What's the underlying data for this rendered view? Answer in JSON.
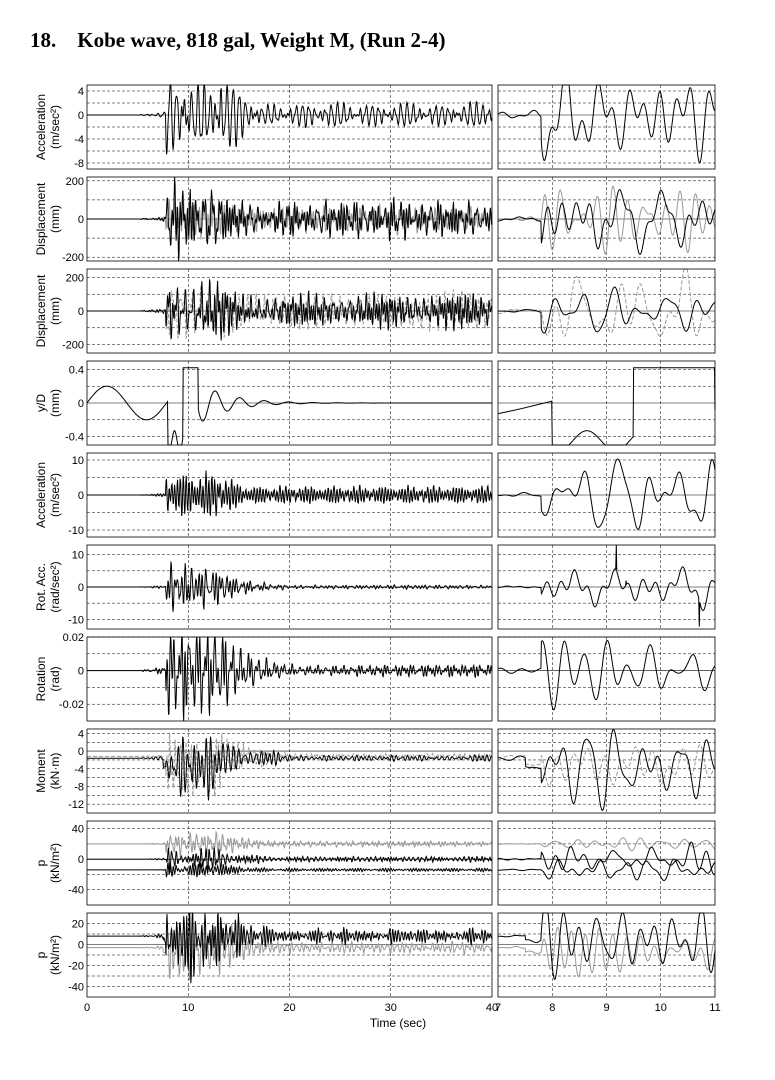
{
  "title": "18.    Kobe wave, 818 gal, Weight M, (Run 2-4)",
  "x_axis_label": "Time (sec)",
  "chart_data": {
    "type": "line",
    "title": "18.    Kobe wave, 818 gal, Weight M, (Run 2-4)",
    "xlabel": "Time (sec)",
    "grid": true,
    "left_column": {
      "xlim": [
        0,
        40
      ],
      "xticks": [
        "0",
        "10",
        "20",
        "30",
        "40"
      ]
    },
    "right_column": {
      "xlim": [
        7,
        11
      ],
      "xticks": [
        "7",
        "8",
        "9",
        "10",
        "11"
      ]
    },
    "panels": [
      {
        "ylabel": [
          "Acceleration",
          "(m/sec²)"
        ],
        "ylim": [
          -9,
          5
        ],
        "yticks": [
          4,
          2,
          0,
          -2,
          -4,
          -6,
          -8
        ],
        "yticklabels": [
          "4",
          "0",
          "-4",
          "-8"
        ],
        "zero_lines": [
          0
        ],
        "series": [
          {
            "color": "#000000",
            "amp": 7.5,
            "tail": 0.3,
            "base": 0,
            "dash": false,
            "seed": 1
          }
        ]
      },
      {
        "ylabel": [
          "Displacement",
          "(mm)"
        ],
        "ylim": [
          -220,
          220
        ],
        "yticks": [
          200,
          100,
          0,
          -100,
          -200
        ],
        "yticklabels": [
          "200",
          "0",
          "-200"
        ],
        "zero_lines": [
          0
        ],
        "series": [
          {
            "color": "#999999",
            "amp": 175,
            "tail": 0.5,
            "base": 0,
            "dash": false,
            "seed": 2
          },
          {
            "color": "#000000",
            "amp": 165,
            "tail": 0.5,
            "base": 0,
            "dash": false,
            "seed": 2
          }
        ]
      },
      {
        "ylabel": [
          "Displacement",
          "(mm)"
        ],
        "ylim": [
          -250,
          250
        ],
        "yticks": [
          200,
          100,
          0,
          -100,
          -200
        ],
        "yticklabels": [
          "200",
          "0",
          "-200"
        ],
        "zero_lines": [
          0
        ],
        "series": [
          {
            "color": "#999999",
            "amp": 215,
            "tail": 0.5,
            "base": 0,
            "dash": true,
            "seed": 3
          },
          {
            "color": "#000000",
            "amp": 200,
            "tail": 0.5,
            "base": 0,
            "dash": false,
            "seed": 3
          }
        ]
      },
      {
        "ylabel": [
          "y/D",
          "(mm)"
        ],
        "ylim": [
          -0.5,
          0.5
        ],
        "yticks": [
          0.4,
          0.2,
          0,
          -0.2,
          -0.4
        ],
        "yticklabels": [
          "0.4",
          "0",
          "-0.4"
        ],
        "zero_lines": [
          0
        ],
        "series": [
          {
            "color": "#000000",
            "amp": 0.43,
            "tail": 0.0,
            "base": 0,
            "dash": false,
            "seed": 4,
            "smooth": true
          }
        ]
      },
      {
        "ylabel": [
          "Acceleration",
          "(m/sec²)"
        ],
        "ylim": [
          -12,
          12
        ],
        "yticks": [
          10,
          5,
          0,
          -5,
          -10
        ],
        "yticklabels": [
          "10",
          "0",
          "-10"
        ],
        "zero_lines": [
          0
        ],
        "series": [
          {
            "color": "#000000",
            "amp": 10.5,
            "tail": 0.4,
            "base": 0,
            "dash": false,
            "seed": 5
          }
        ]
      },
      {
        "ylabel": [
          "Rot. Acc.",
          "(rad/sec²)"
        ],
        "ylim": [
          -13,
          13
        ],
        "yticks": [
          10,
          5,
          0,
          -5,
          -10
        ],
        "yticklabels": [
          "10",
          "0",
          "-10"
        ],
        "zero_lines": [
          0
        ],
        "series": [
          {
            "color": "#000000",
            "amp": 5,
            "tail": 0.1,
            "base": 0,
            "dash": false,
            "seed": 6,
            "spikes": true
          }
        ]
      },
      {
        "ylabel": [
          "Rotation",
          "(rad)"
        ],
        "ylim": [
          -0.03,
          0.02
        ],
        "yticks": [
          0.02,
          0.01,
          0,
          -0.01,
          -0.02
        ],
        "yticklabels": [
          "0.02",
          "0",
          "-0.02"
        ],
        "zero_lines": [
          0
        ],
        "series": [
          {
            "color": "#000000",
            "amp": 0.027,
            "tail": 0.1,
            "base": 0,
            "dash": false,
            "seed": 7
          }
        ]
      },
      {
        "ylabel": [
          "Moment",
          "(kN·m)"
        ],
        "ylim": [
          -14,
          5
        ],
        "yticks": [
          4,
          2,
          0,
          -2,
          -4,
          -6,
          -8,
          -10,
          -12
        ],
        "yticklabels": [
          "4",
          "0",
          "-4",
          "-8",
          "-12"
        ],
        "zero_lines": [
          0
        ],
        "series": [
          {
            "color": "#999999",
            "amp": 6,
            "tail": 0.1,
            "base": -1.2,
            "dash": true,
            "seed": 8,
            "offset": -4
          },
          {
            "color": "#000000",
            "amp": 6,
            "tail": 0.1,
            "base": -1.6,
            "dash": false,
            "seed": 8,
            "offset": -4
          }
        ]
      },
      {
        "ylabel": [
          "p",
          "(kN/m²)"
        ],
        "ylim": [
          -60,
          50
        ],
        "yticks": [
          40,
          20,
          0,
          -20,
          -40
        ],
        "yticklabels": [
          "40",
          "0",
          "-40"
        ],
        "zero_lines": [
          0
        ],
        "series": [
          {
            "color": "#999999",
            "amp": 14,
            "tail": 0.25,
            "base": 20,
            "dash": false,
            "seed": 9
          },
          {
            "color": "#000000",
            "amp": 14,
            "tail": 0.25,
            "base": 0,
            "dash": false,
            "seed": 10
          },
          {
            "color": "#000000",
            "amp": 14,
            "tail": 0.25,
            "base": -14,
            "dash": false,
            "seed": 11
          }
        ]
      },
      {
        "ylabel": [
          "p",
          "(kN/m²)"
        ],
        "ylim": [
          -50,
          30
        ],
        "yticks": [
          20,
          10,
          0,
          -10,
          -20,
          -30,
          -40
        ],
        "yticklabels": [
          "20",
          "0",
          "-20",
          "-40"
        ],
        "zero_lines": [
          0
        ],
        "series": [
          {
            "color": "#999999",
            "amp": 28,
            "tail": 0.2,
            "base": -3,
            "dash": false,
            "seed": 12,
            "offset": -8
          },
          {
            "color": "#000000",
            "amp": 30,
            "tail": 0.2,
            "base": 8,
            "dash": false,
            "seed": 13,
            "offset": -8
          }
        ]
      }
    ]
  }
}
